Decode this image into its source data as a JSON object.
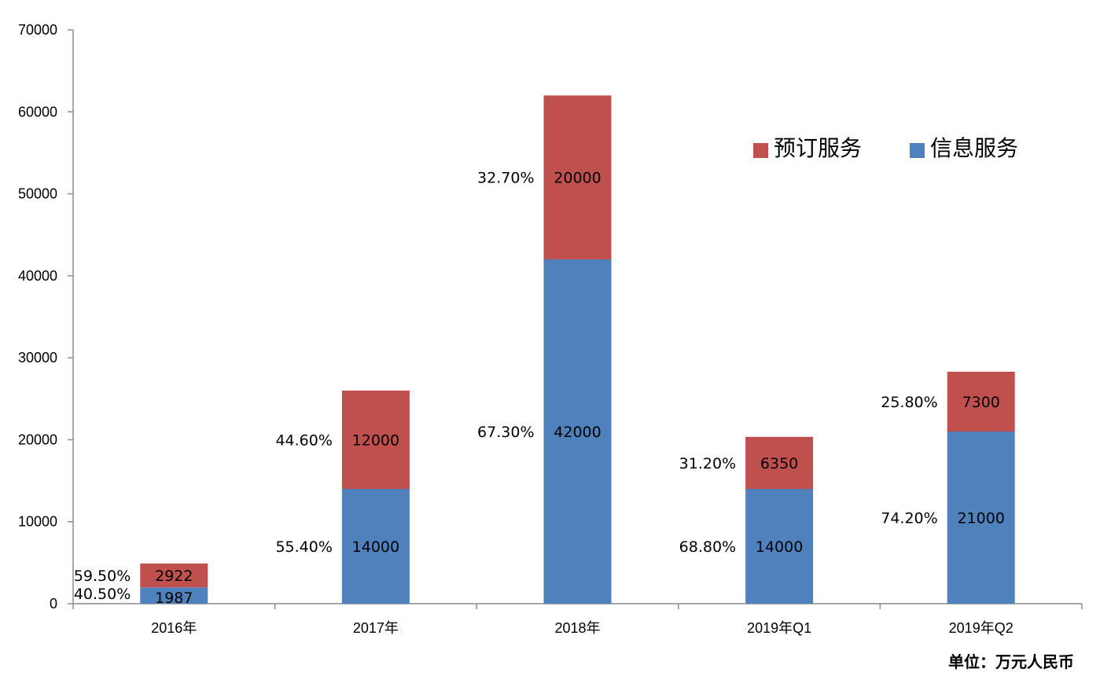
{
  "chart_data": {
    "type": "bar",
    "stacked": true,
    "categories": [
      "2016年",
      "2017年",
      "2018年",
      "2019年Q1",
      "2019年Q2"
    ],
    "series": [
      {
        "name": "信息服务",
        "color": "#4f81bd",
        "values": [
          1987,
          14000,
          42000,
          14000,
          21000
        ],
        "percent_labels": [
          "40.50%",
          "55.40%",
          "67.30%",
          "68.80%",
          "74.20%"
        ]
      },
      {
        "name": "预订服务",
        "color": "#c0504d",
        "values": [
          2922,
          12000,
          20000,
          6350,
          7300
        ],
        "percent_labels": [
          "59.50%",
          "44.60%",
          "32.70%",
          "31.20%",
          "25.80%"
        ]
      }
    ],
    "legend_order": [
      "预订服务",
      "信息服务"
    ],
    "legend_position": "top-right",
    "ylim": [
      0,
      70000
    ],
    "yticks": [
      0,
      10000,
      20000,
      30000,
      40000,
      50000,
      60000,
      70000
    ],
    "grid": false,
    "unit_note": "单位：万元人民币"
  }
}
